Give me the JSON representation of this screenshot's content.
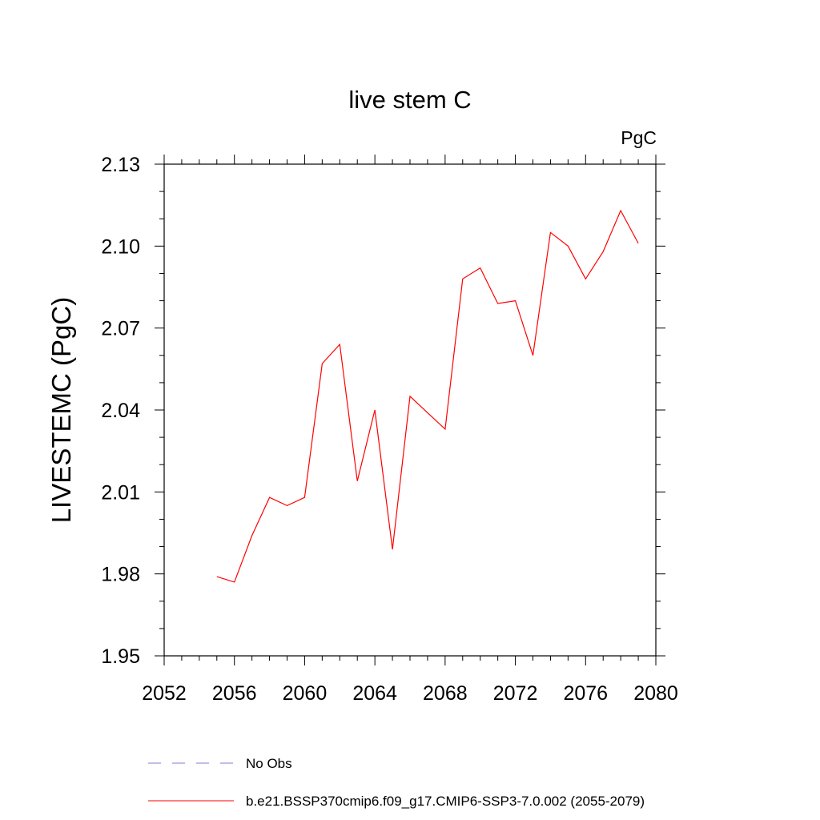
{
  "chart_data": {
    "type": "line",
    "title": "live stem C",
    "units_label": "PgC",
    "ylabel": "LIVESTEMC  (PgC)",
    "xlabel": "",
    "xlim": [
      2052,
      2080
    ],
    "ylim": [
      1.95,
      2.13
    ],
    "xticks": [
      2052,
      2056,
      2060,
      2064,
      2068,
      2072,
      2076,
      2080
    ],
    "xtick_labels": [
      "2052",
      "2056",
      "2060",
      "2064",
      "2068",
      "2072",
      "2076",
      "2080"
    ],
    "yticks": [
      1.95,
      1.98,
      2.01,
      2.04,
      2.07,
      2.1,
      2.13
    ],
    "ytick_labels": [
      "1.95",
      "1.98",
      "2.01",
      "2.04",
      "2.07",
      "2.10",
      "2.13"
    ],
    "grid": false,
    "legend_position": "bottom",
    "series": [
      {
        "name": "b.e21.BSSP370cmip6.f09_g17.CMIP6-SSP3-7.0.002 (2055-2079)",
        "color": "#ff0000",
        "dash": "solid",
        "x": [
          2055,
          2056,
          2057,
          2058,
          2059,
          2060,
          2061,
          2062,
          2063,
          2064,
          2065,
          2066,
          2067,
          2068,
          2069,
          2070,
          2071,
          2072,
          2073,
          2074,
          2075,
          2076,
          2077,
          2078,
          2079
        ],
        "y": [
          1.979,
          1.977,
          1.994,
          2.008,
          2.005,
          2.008,
          2.057,
          2.064,
          2.014,
          2.04,
          1.989,
          2.045,
          2.039,
          2.033,
          2.088,
          2.092,
          2.079,
          2.08,
          2.06,
          2.105,
          2.1,
          2.088,
          2.098,
          2.113,
          2.101
        ]
      }
    ],
    "legend": [
      {
        "label": "No Obs",
        "color": "#7f7fd0",
        "dash": "dashed"
      },
      {
        "label": "b.e21.BSSP370cmip6.f09_g17.CMIP6-SSP3-7.0.002 (2055-2079)",
        "color": "#ff0000",
        "dash": "solid"
      }
    ]
  }
}
